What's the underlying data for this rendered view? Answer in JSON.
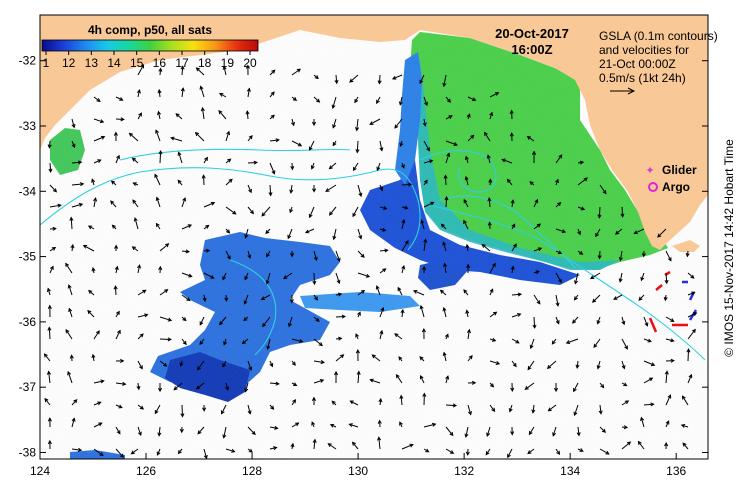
{
  "colorbar": {
    "title": "4h comp, p50, all sats",
    "ticks": [
      "1",
      "12",
      "13",
      "14",
      "15",
      "16",
      "17",
      "18",
      "19",
      "20"
    ],
    "colors": [
      "#0a0a8c",
      "#1a3fd8",
      "#1e88f0",
      "#18c8e8",
      "#18d8a0",
      "#40d040",
      "#a8e020",
      "#f8e010",
      "#f89818",
      "#e83010",
      "#b80808"
    ]
  },
  "timestamp": {
    "date": "20-Oct-2017",
    "time": "16:00Z"
  },
  "legend_text": {
    "line1": "GSLA (0.1m contours)",
    "line2": "and velocities for",
    "line3": "21-Oct 00:00Z",
    "line4": "0.5m/s (1kt 24h)"
  },
  "markers": {
    "glider_label": "Glider",
    "argo_label": "Argo",
    "glider_color": "#d040d0",
    "argo_color": "#e020e0"
  },
  "credit": "©  IMOS 15-Nov-2017 14:42 Hobart Time",
  "axes": {
    "lon_ticks": [
      "124",
      "126",
      "128",
      "130",
      "132",
      "134",
      "136"
    ],
    "lat_ticks": [
      "-32",
      "-33",
      "-34",
      "-35",
      "-36",
      "-37",
      "-38"
    ],
    "lon_range": [
      124,
      136.6
    ],
    "lat_range": [
      -31.3,
      -38.1
    ]
  },
  "colors": {
    "land": "#f8c896",
    "contour": "#30d0e0",
    "arrow": "#000000"
  }
}
